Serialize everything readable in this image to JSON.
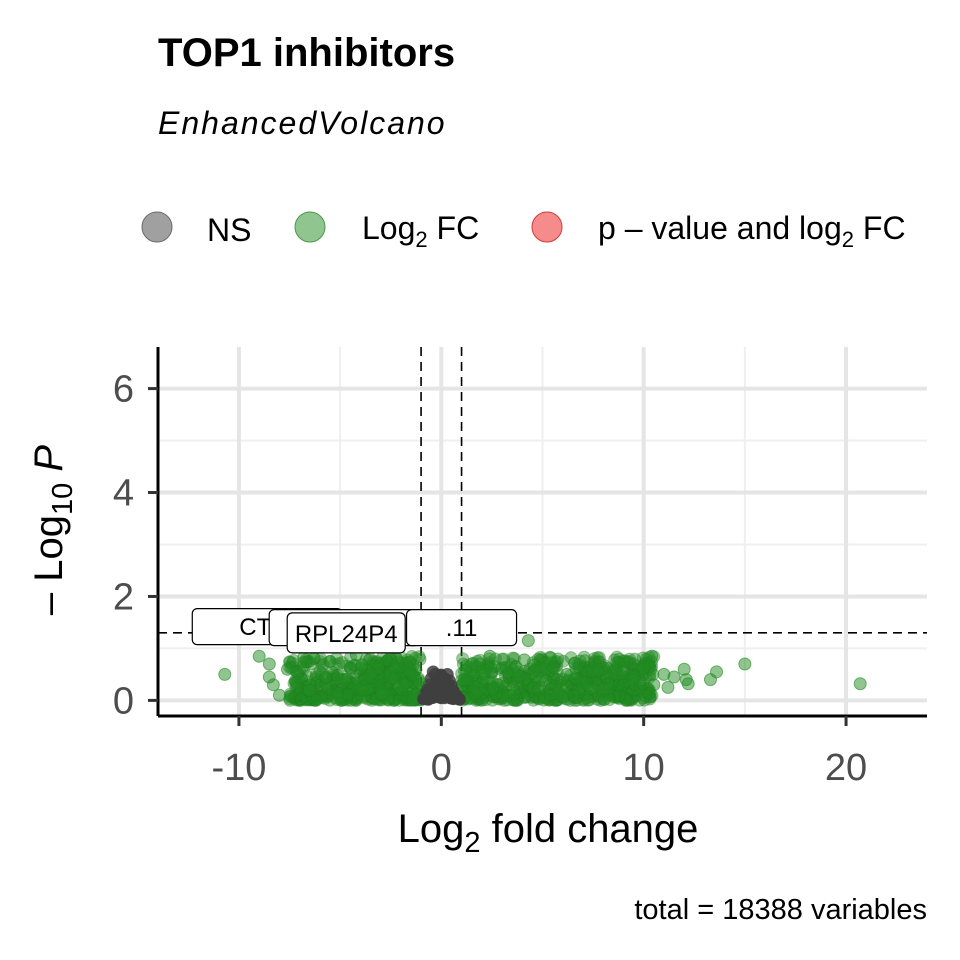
{
  "chart_data": {
    "type": "scatter",
    "title": "TOP1 inhibitors",
    "subtitle": "EnhancedVolcano",
    "xlabel": "Log2 fold change",
    "ylabel": "-Log10 P",
    "caption": "total = 18388 variables",
    "xlim": [
      -14,
      24
    ],
    "ylim": [
      -0.3,
      6.8
    ],
    "x_ticks": [
      "-10",
      "0",
      "10",
      "20"
    ],
    "y_ticks": [
      "0",
      "2",
      "4",
      "6"
    ],
    "x_tick_values": [
      -10,
      0,
      10,
      20
    ],
    "y_tick_values": [
      0,
      2,
      4,
      6
    ],
    "fc_cutoff": 1,
    "p_cutoff_neglog10": 1.3,
    "grid": true,
    "legend_position": "top",
    "legend": [
      {
        "key": "NS",
        "text": "NS",
        "color": "#808080"
      },
      {
        "key": "log2fc",
        "text": "Log",
        "sub": "2",
        "tail": " FC",
        "color": "#228b22"
      },
      {
        "key": "both",
        "text": "p – value and log",
        "sub": "2",
        "tail": " FC",
        "color": "#ee2c2c"
      }
    ],
    "series": [
      {
        "name": "NS",
        "color": "#404040",
        "points": [
          [
            -0.9,
            0.05
          ],
          [
            -0.8,
            0.12
          ],
          [
            -0.7,
            0.2
          ],
          [
            -0.6,
            0.3
          ],
          [
            -0.5,
            0.42
          ],
          [
            -0.4,
            0.55
          ],
          [
            -0.3,
            0.5
          ],
          [
            -0.2,
            0.35
          ],
          [
            -0.1,
            0.2
          ],
          [
            0.0,
            0.05
          ],
          [
            0.1,
            0.25
          ],
          [
            0.2,
            0.4
          ],
          [
            0.3,
            0.5
          ],
          [
            0.4,
            0.38
          ],
          [
            0.5,
            0.28
          ],
          [
            0.6,
            0.18
          ],
          [
            0.7,
            0.1
          ],
          [
            0.8,
            0.04
          ],
          [
            0.9,
            0.02
          ],
          [
            -0.45,
            0.15
          ],
          [
            0.35,
            0.12
          ],
          [
            -0.15,
            0.08
          ],
          [
            0.15,
            0.1
          ],
          [
            -0.65,
            0.02
          ],
          [
            0.55,
            0.05
          ]
        ]
      },
      {
        "name": "Log2 FC",
        "color": "#228b22",
        "points": [
          [
            -10.7,
            0.5
          ],
          [
            -9.0,
            0.85
          ],
          [
            -8.5,
            0.7
          ],
          [
            -8.5,
            0.45
          ],
          [
            -8.3,
            0.3
          ],
          [
            -8.0,
            0.1
          ],
          [
            -7.6,
            0.6
          ],
          [
            -7.2,
            0.35
          ],
          [
            -6.8,
            0.82
          ],
          [
            -6.5,
            0.2
          ],
          [
            -6.0,
            0.55
          ],
          [
            -5.5,
            0.75
          ],
          [
            -5.2,
            0.05
          ],
          [
            -4.8,
            0.4
          ],
          [
            -4.5,
            0.62
          ],
          [
            -4.2,
            0.88
          ],
          [
            -3.9,
            0.25
          ],
          [
            -3.5,
            0.5
          ],
          [
            -3.2,
            0.72
          ],
          [
            -2.9,
            0.15
          ],
          [
            -2.5,
            0.45
          ],
          [
            -2.2,
            0.8
          ],
          [
            -1.9,
            0.3
          ],
          [
            -1.6,
            0.6
          ],
          [
            -1.3,
            0.1
          ],
          [
            -1.1,
            0.38
          ],
          [
            1.2,
            0.42
          ],
          [
            1.5,
            0.7
          ],
          [
            1.8,
            0.2
          ],
          [
            2.1,
            0.55
          ],
          [
            2.4,
            0.85
          ],
          [
            2.8,
            0.3
          ],
          [
            3.1,
            0.62
          ],
          [
            3.4,
            0.08
          ],
          [
            3.8,
            0.48
          ],
          [
            4.1,
            0.78
          ],
          [
            4.3,
            1.15
          ],
          [
            4.6,
            0.25
          ],
          [
            5.0,
            0.6
          ],
          [
            5.4,
            0.82
          ],
          [
            5.8,
            0.15
          ],
          [
            6.2,
            0.5
          ],
          [
            6.6,
            0.72
          ],
          [
            7.0,
            0.35
          ],
          [
            7.5,
            0.6
          ],
          [
            8.0,
            0.2
          ],
          [
            8.5,
            0.55
          ],
          [
            9.0,
            0.75
          ],
          [
            9.5,
            0.4
          ],
          [
            10.0,
            0.65
          ],
          [
            10.5,
            0.3
          ],
          [
            10.4,
            0.85
          ],
          [
            11.0,
            0.5
          ],
          [
            11.2,
            0.25
          ],
          [
            11.5,
            0.45
          ],
          [
            12.0,
            0.6
          ],
          [
            12.1,
            0.4
          ],
          [
            12.2,
            0.32
          ],
          [
            13.3,
            0.4
          ],
          [
            13.6,
            0.55
          ],
          [
            15.0,
            0.7
          ],
          [
            20.7,
            0.32
          ]
        ]
      }
    ],
    "labels": [
      {
        "text": "CTB-",
        "x": -8.6,
        "y": 1.42
      },
      {
        "text": "R",
        "x": -4.8,
        "y": 1.4
      },
      {
        "text": ".11",
        "x": 1.0,
        "y": 1.4
      },
      {
        "text": "RPL24P4",
        "x": -4.7,
        "y": 1.3
      }
    ]
  }
}
